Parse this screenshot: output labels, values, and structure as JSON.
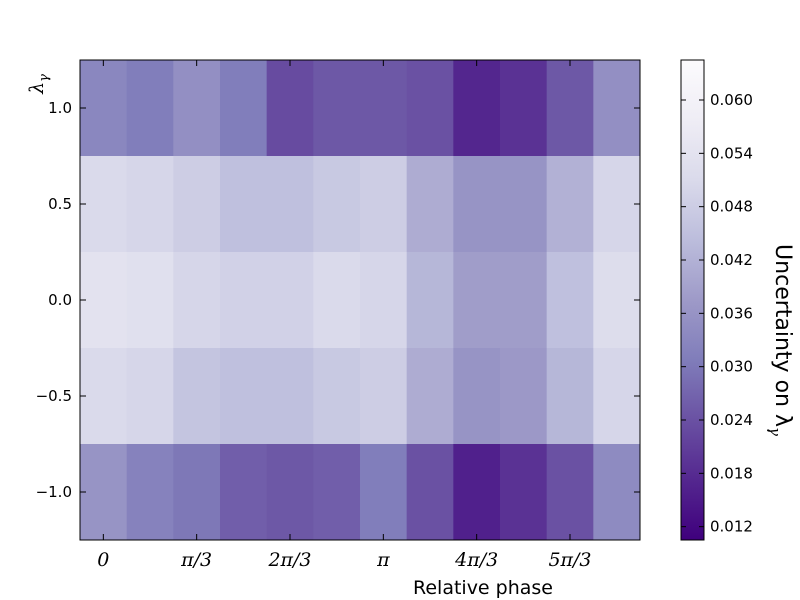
{
  "chart_data": {
    "type": "heatmap",
    "xlabel": "Relative phase",
    "ylabel": "λ_γ",
    "x_tick_labels": [
      "0",
      "π/3",
      "2π/3",
      "π",
      "4π/3",
      "5π/3"
    ],
    "y_tick_labels": [
      "1.0",
      "0.5",
      "0.0",
      "−0.5",
      "−1.0"
    ],
    "y_values": [
      1.0,
      0.5,
      0.0,
      -0.5,
      -1.0
    ],
    "x_columns": 12,
    "ylim": [
      -1.25,
      1.25
    ],
    "values": [
      [
        0.033,
        0.031,
        0.035,
        0.031,
        0.023,
        0.025,
        0.025,
        0.024,
        0.017,
        0.019,
        0.025,
        0.035
      ],
      [
        0.051,
        0.05,
        0.048,
        0.045,
        0.045,
        0.047,
        0.048,
        0.041,
        0.036,
        0.036,
        0.042,
        0.05
      ],
      [
        0.054,
        0.053,
        0.05,
        0.049,
        0.049,
        0.051,
        0.05,
        0.043,
        0.038,
        0.038,
        0.045,
        0.052
      ],
      [
        0.051,
        0.05,
        0.046,
        0.045,
        0.045,
        0.047,
        0.048,
        0.041,
        0.036,
        0.037,
        0.043,
        0.05
      ],
      [
        0.036,
        0.032,
        0.03,
        0.026,
        0.025,
        0.026,
        0.031,
        0.024,
        0.016,
        0.019,
        0.024,
        0.034
      ]
    ],
    "colorbar": {
      "label": "Uncertainty on λ_γ",
      "vmin": 0.0105,
      "vmax": 0.0645,
      "ticks": [
        0.012,
        0.018,
        0.024,
        0.03,
        0.036,
        0.042,
        0.048,
        0.054,
        0.06
      ],
      "tick_labels": [
        "0.012",
        "0.018",
        "0.024",
        "0.030",
        "0.036",
        "0.042",
        "0.048",
        "0.054",
        "0.060"
      ],
      "colormap": [
        "#3f007d",
        "#54278f",
        "#6a51a3",
        "#807dba",
        "#9e9ac8",
        "#bcbddc",
        "#dadaeb",
        "#efedf5",
        "#fcfbfd"
      ]
    }
  }
}
